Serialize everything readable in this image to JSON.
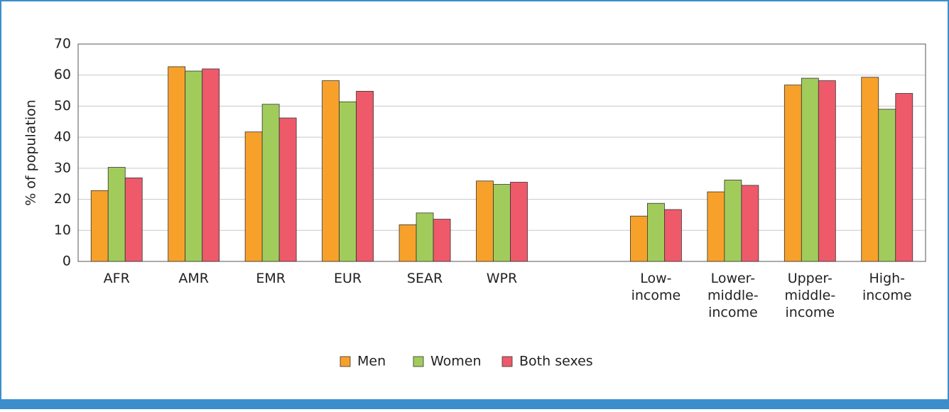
{
  "chart_data": {
    "type": "bar",
    "y_label": "% of population",
    "categories": [
      "AFR",
      "AMR",
      "EMR",
      "EUR",
      "SEAR",
      "WPR",
      null,
      "Low-\nincome",
      "Lower-\nmiddle-\nincome",
      "Upper-\nmiddle-\nincome",
      "High-\nincome"
    ],
    "series": [
      {
        "name": "Men",
        "color": "#f7a12b",
        "values": [
          22.8,
          62.7,
          41.7,
          58.2,
          11.8,
          25.9,
          null,
          14.6,
          22.4,
          56.8,
          59.3
        ]
      },
      {
        "name": "Women",
        "color": "#a1cc5c",
        "values": [
          30.3,
          61.3,
          50.6,
          51.4,
          15.6,
          24.8,
          null,
          18.7,
          26.2,
          59.0,
          49.0
        ]
      },
      {
        "name": "Both sexes",
        "color": "#ee5a6a",
        "values": [
          26.9,
          62.0,
          46.2,
          54.8,
          13.6,
          25.5,
          null,
          16.7,
          24.5,
          58.2,
          54.1
        ]
      }
    ],
    "ylim": [
      0,
      70
    ],
    "yticks": [
      0,
      10,
      20,
      30,
      40,
      50,
      60,
      70
    ],
    "grid": true,
    "legend": "bottom"
  }
}
